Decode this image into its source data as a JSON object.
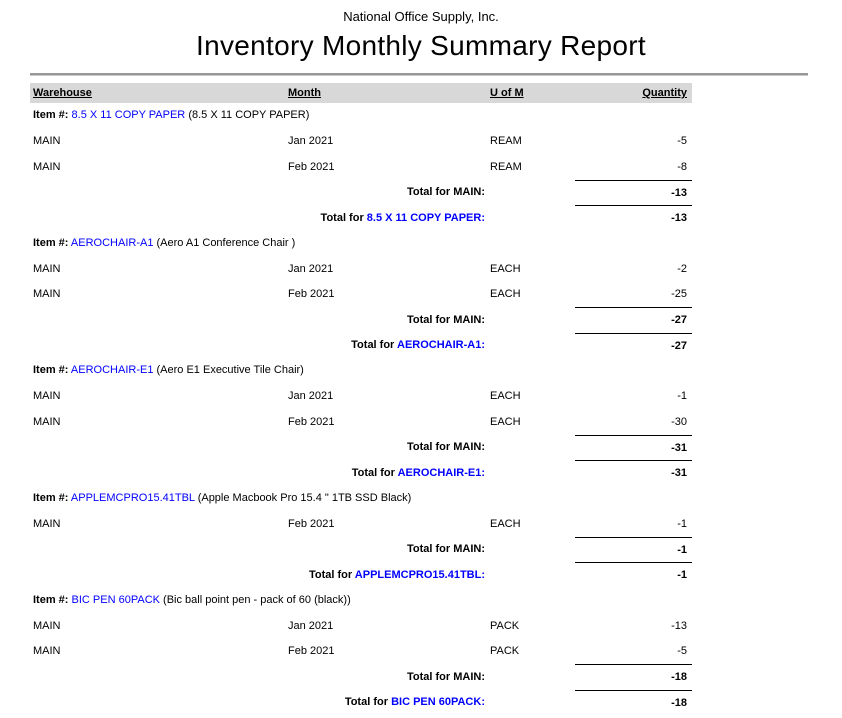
{
  "report": {
    "company": "National Office Supply, Inc.",
    "title": "Inventory Monthly Summary Report"
  },
  "colors": {
    "link_blue": "#0000FF",
    "header_band": "#D8D8D8"
  },
  "columns": [
    "Warehouse",
    "Month",
    "U of M",
    "Quantity"
  ],
  "groups": [
    {
      "item_label": "Item #:",
      "code": "8.5 X 11 COPY PAPER",
      "description": "(8.5 X 11 COPY PAPER)",
      "rows": [
        {
          "warehouse": "MAIN",
          "month": "Jan 2021",
          "uom": "REAM",
          "qty": "-5"
        },
        {
          "warehouse": "MAIN",
          "month": "Feb 2021",
          "uom": "REAM",
          "qty": "-8"
        }
      ],
      "totals": [
        {
          "prefix": "Total for",
          "target": "MAIN:",
          "value": "-13"
        },
        {
          "prefix": "Total for",
          "target": "8.5 X 11 COPY PAPER:",
          "value": "-13"
        }
      ]
    },
    {
      "item_label": "Item #:",
      "code": "AEROCHAIR-A1",
      "description": "(Aero A1 Conference Chair )",
      "rows": [
        {
          "warehouse": "MAIN",
          "month": "Jan 2021",
          "uom": "EACH",
          "qty": "-2"
        },
        {
          "warehouse": "MAIN",
          "month": "Feb 2021",
          "uom": "EACH",
          "qty": "-25"
        }
      ],
      "totals": [
        {
          "prefix": "Total for",
          "target": "MAIN:",
          "value": "-27"
        },
        {
          "prefix": "Total for",
          "target": "AEROCHAIR-A1:",
          "value": "-27"
        }
      ]
    },
    {
      "item_label": "Item #:",
      "code": "AEROCHAIR-E1",
      "description": "(Aero E1 Executive Tile Chair)",
      "rows": [
        {
          "warehouse": "MAIN",
          "month": "Jan 2021",
          "uom": "EACH",
          "qty": "-1"
        },
        {
          "warehouse": "MAIN",
          "month": "Feb 2021",
          "uom": "EACH",
          "qty": "-30"
        }
      ],
      "totals": [
        {
          "prefix": "Total for",
          "target": "MAIN:",
          "value": "-31"
        },
        {
          "prefix": "Total for",
          "target": "AEROCHAIR-E1:",
          "value": "-31"
        }
      ]
    },
    {
      "item_label": "Item #:",
      "code": "APPLEMCPRO15.41TBL",
      "description": "(Apple Macbook Pro 15.4 \" 1TB SSD Black)",
      "rows": [
        {
          "warehouse": "MAIN",
          "month": "Feb 2021",
          "uom": "EACH",
          "qty": "-1"
        }
      ],
      "totals": [
        {
          "prefix": "Total for",
          "target": "MAIN:",
          "value": "-1"
        },
        {
          "prefix": "Total for",
          "target": "APPLEMCPRO15.41TBL:",
          "value": "-1"
        }
      ]
    },
    {
      "item_label": "Item #:",
      "code": "BIC PEN 60PACK",
      "description": "(Bic ball point pen - pack of 60 (black))",
      "rows": [
        {
          "warehouse": "MAIN",
          "month": "Jan 2021",
          "uom": "PACK",
          "qty": "-13"
        },
        {
          "warehouse": "MAIN",
          "month": "Feb 2021",
          "uom": "PACK",
          "qty": "-5"
        }
      ],
      "totals": [
        {
          "prefix": "Total for",
          "target": "MAIN:",
          "value": "-18"
        },
        {
          "prefix": "Total for",
          "target": "BIC PEN 60PACK:",
          "value": "-18"
        }
      ]
    }
  ]
}
